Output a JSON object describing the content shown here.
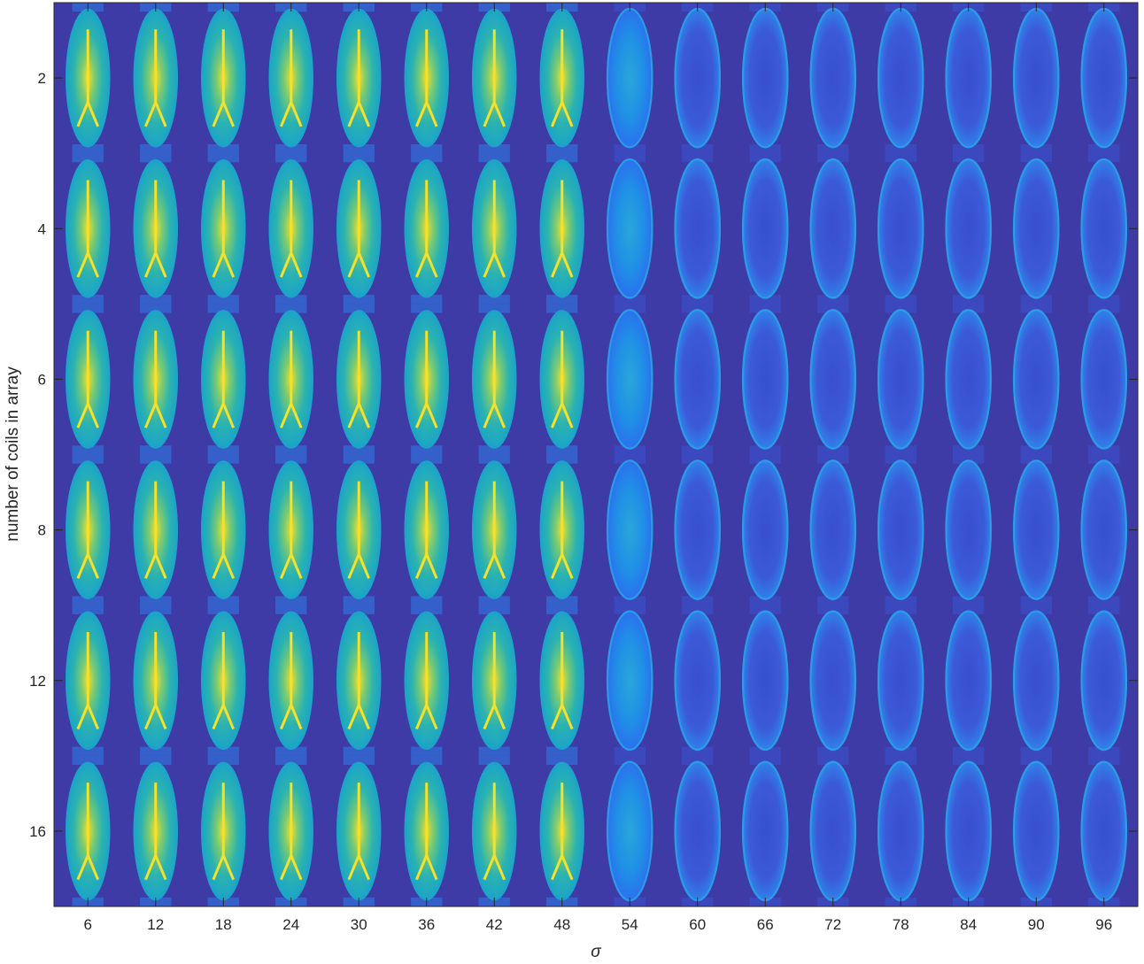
{
  "chart_data": {
    "type": "heatmap",
    "title": "",
    "xlabel": "σ",
    "ylabel": "number of coils in array",
    "x_ticks": [
      6,
      12,
      18,
      24,
      30,
      36,
      42,
      48,
      54,
      60,
      66,
      72,
      78,
      84,
      90,
      96
    ],
    "y_ticks": [
      2,
      4,
      6,
      8,
      12,
      16
    ],
    "xlim": [
      3,
      99
    ],
    "ylim_description": "rows ordered top to bottom: 2, 4, 6, 8, 12, 16",
    "colormap": "parula",
    "colors": {
      "background": "#3E3AA6",
      "low": "#3550DD",
      "mid_blue": "#1E8BE8",
      "cyan": "#17ADC4",
      "teal": "#3CBDA0",
      "high": "#F5E02A",
      "axis": "#262626"
    },
    "grid": false,
    "legend": "none",
    "description_values": {
      "sharp_reconstruction_sigma_max": 48,
      "degraded_reconstruction_sigma_min": 54
    }
  }
}
